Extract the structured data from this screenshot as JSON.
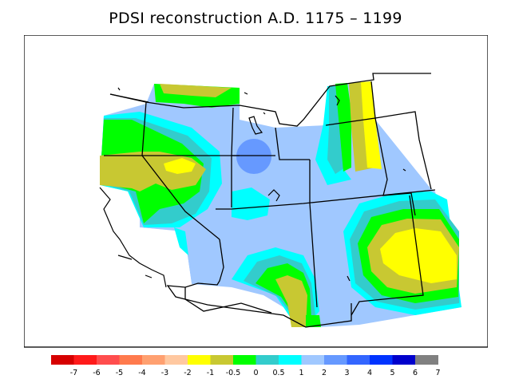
{
  "title": "PDSI reconstruction A.D. 1175 – 1199",
  "colorbar": {
    "colors": [
      "#d60000",
      "#ff1a1a",
      "#ff4d4d",
      "#ff7a4d",
      "#ffa070",
      "#ffc8a0",
      "#ffff00",
      "#c8c832",
      "#00ff00",
      "#33cccc",
      "#00ffff",
      "#a0c8ff",
      "#6699ff",
      "#3366ff",
      "#0033ff",
      "#0000cc",
      "#808080"
    ],
    "labels": [
      "-7",
      "-6",
      "-5",
      "-4",
      "-3",
      "-2",
      "-1",
      "-0.5",
      "0",
      "0.5",
      "1",
      "2",
      "3",
      "4",
      "5",
      "6",
      "7"
    ]
  }
}
